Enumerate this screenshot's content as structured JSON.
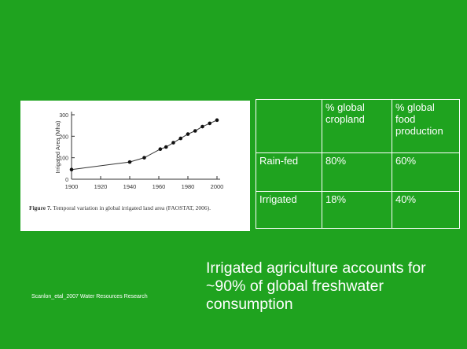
{
  "slide": {
    "background": "#1fa31f"
  },
  "figure": {
    "chart_data": {
      "type": "scatter",
      "ylabel": "Irrigated Area (Mha)",
      "xlabel": "",
      "x_ticks": [
        "1900",
        "1920",
        "1940",
        "1960",
        "1980",
        "2000"
      ],
      "y_ticks": [
        "0",
        "100",
        "200",
        "300"
      ],
      "xlim": [
        1900,
        2000
      ],
      "ylim": [
        0,
        300
      ],
      "x": [
        1900,
        1940,
        1950,
        1961,
        1965,
        1970,
        1975,
        1980,
        1985,
        1990,
        1995,
        2000
      ],
      "values": [
        45,
        80,
        100,
        140,
        150,
        170,
        190,
        210,
        225,
        245,
        260,
        275
      ]
    },
    "caption_label": "Figure 7.",
    "caption_text": "Temporal variation in global irrigated land area (FAOSTAT, 2006)."
  },
  "table": {
    "header": [
      "",
      "% global cropland",
      "% global food production"
    ],
    "rows": [
      [
        "Rain-fed",
        "80%",
        "60%"
      ],
      [
        "Irrigated",
        "18%",
        "40%"
      ]
    ]
  },
  "citation": "Scanlon_etal_2007 Water Resources Research",
  "statement": "Irrigated agriculture accounts for ~90% of global freshwater consumption"
}
